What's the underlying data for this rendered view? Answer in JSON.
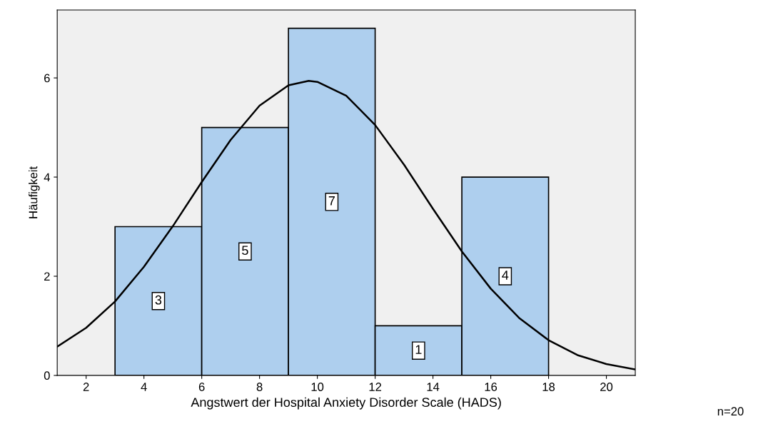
{
  "chart_data": {
    "type": "histogram",
    "xlabel": "Angstwert der Hospital Anxiety Disorder Scale (HADS)",
    "ylabel": "Häufigkeit",
    "bins": [
      3,
      6,
      9,
      12,
      15,
      18
    ],
    "values": [
      3,
      5,
      7,
      1,
      4
    ],
    "color": "#aecfee",
    "value_labels": [
      "3",
      "5",
      "7",
      "1",
      "4"
    ],
    "series": [
      {
        "type": "line",
        "color": "#000000",
        "x": [
          1,
          2,
          3,
          4,
          5,
          6,
          7,
          8,
          9,
          9.7,
          10,
          11,
          12,
          13,
          14,
          15,
          16,
          17,
          18,
          19,
          20,
          21
        ],
        "values": [
          0.58,
          0.96,
          1.49,
          2.19,
          3.01,
          3.9,
          4.75,
          5.44,
          5.85,
          5.94,
          5.92,
          5.64,
          5.05,
          4.25,
          3.36,
          2.5,
          1.75,
          1.15,
          0.71,
          0.41,
          0.23,
          0.12
        ]
      }
    ],
    "xlim": [
      1,
      21
    ],
    "xticks": [
      2,
      4,
      6,
      8,
      10,
      12,
      14,
      16,
      18,
      20
    ],
    "ylim": [
      0,
      7.37
    ],
    "yticks": [
      0,
      2,
      4,
      6
    ],
    "grid": false,
    "annotations": [
      "n=20"
    ]
  }
}
